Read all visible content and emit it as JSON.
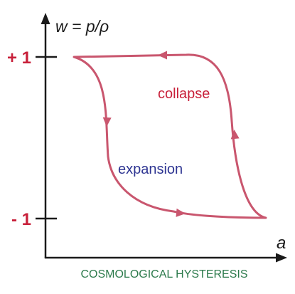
{
  "diagram": {
    "y_axis_label": "w = p/ρ",
    "x_axis_label": "a",
    "tick_upper": "+ 1",
    "tick_lower": "- 1",
    "curve_label_collapse": "collapse",
    "curve_label_expansion": "expansion",
    "caption": "COSMOLOGICAL HYSTERESIS"
  },
  "colors": {
    "axis": "#1a1a1a",
    "curve": "#c9566e",
    "tick_labels": "#c8203a",
    "collapse_label": "#c8203a",
    "expansion_label": "#2e3592",
    "caption": "#2b7a4b"
  }
}
